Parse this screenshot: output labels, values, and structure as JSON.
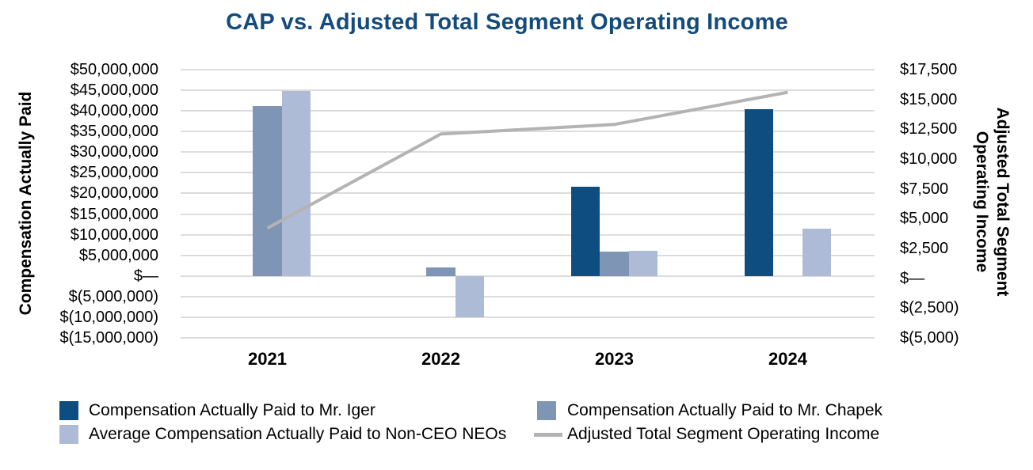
{
  "title": "CAP vs. Adjusted Total Segment Operating Income",
  "colors": {
    "title_text": "#134B7D",
    "iger_bar": "#0E4D7F",
    "chapek_bar": "#7E95B6",
    "neo_bar": "#AEBBD6",
    "line": "#B3B3B3",
    "gridline": "#DCDCDC",
    "axis_text": "#000000"
  },
  "chart_data": {
    "type": "bar",
    "subtype": "grouped bars with secondary-axis line",
    "categories": [
      "2021",
      "2022",
      "2023",
      "2024"
    ],
    "bar_series": [
      {
        "name": "Compensation Actually Paid to Mr. Iger",
        "color": "#0E4D7F",
        "axis": "left",
        "values": [
          null,
          null,
          21600000,
          40400000
        ]
      },
      {
        "name": "Compensation Actually Paid to Mr. Chapek",
        "color": "#7E95B6",
        "axis": "left",
        "values": [
          41200000,
          2000000,
          5900000,
          null
        ]
      },
      {
        "name": "Average Compensation Actually Paid to Non-CEO NEOs",
        "color": "#AEBBD6",
        "axis": "left",
        "values": [
          44800000,
          -10000000,
          6100000,
          11500000
        ]
      }
    ],
    "line_series": {
      "name": "Adjusted Total Segment Operating Income",
      "color": "#B3B3B3",
      "axis": "right",
      "units": "$ millions",
      "values": [
        4200,
        12100,
        12900,
        15600
      ]
    },
    "left_axis": {
      "title": "Compensation Actually Paid",
      "min": -15000000,
      "max": 50000000,
      "tick_step": 5000000,
      "tick_values": [
        50000000,
        45000000,
        40000000,
        35000000,
        30000000,
        25000000,
        20000000,
        15000000,
        10000000,
        5000000,
        0,
        -5000000,
        -10000000,
        -15000000
      ],
      "tick_labels": [
        "$50,000,000",
        "$45,000,000",
        "$40,000,000",
        "$35,000,000",
        "$30,000,000",
        "$25,000,000",
        "$20,000,000",
        "$15,000,000",
        "$10,000,000",
        "$5,000,000",
        "$—",
        "$(5,000,000)",
        "$(10,000,000)",
        "$(15,000,000)"
      ]
    },
    "right_axis": {
      "title_lines": [
        "Adjusted Total Segment",
        "Operating Income"
      ],
      "min": -5000,
      "max": 17500,
      "tick_step": 2500,
      "tick_values": [
        17500,
        15000,
        12500,
        10000,
        7500,
        5000,
        2500,
        0,
        -2500,
        -5000
      ],
      "tick_labels": [
        "$17,500",
        "$15,000",
        "$12,500",
        "$10,000",
        "$7,500",
        "$5,000",
        "$2,500",
        "$—",
        "$(2,500)",
        "$(5,000)"
      ]
    },
    "grid": "horizontal gridlines on, no axis spines",
    "legend_position": "bottom, two columns"
  }
}
